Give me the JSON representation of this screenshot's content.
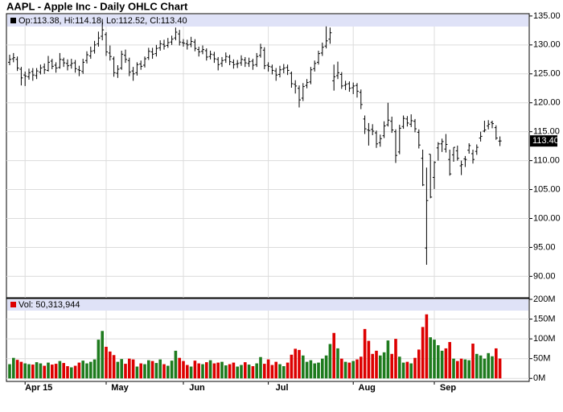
{
  "chart_data": [
    {
      "type": "ohlc",
      "title": "AAPL - Apple Inc - Daily OHLC Chart",
      "legend": "Op:113.38, Hi:114.18, Lo:112.52, Cl:113.40",
      "color": "#000000",
      "grid": true,
      "ylim": [
        86.3,
        135.4
      ],
      "yticks": [
        {
          "value": 90,
          "label": "90.00"
        },
        {
          "value": 95,
          "label": "95.00"
        },
        {
          "value": 100,
          "label": "100.00"
        },
        {
          "value": 105,
          "label": "105.00"
        },
        {
          "value": 110,
          "label": "110.00"
        },
        {
          "value": 115,
          "label": "115.00"
        },
        {
          "value": 120,
          "label": "120.00"
        },
        {
          "value": 125,
          "label": "125.00"
        },
        {
          "value": 130,
          "label": "130.00"
        },
        {
          "value": 135,
          "label": "135.00"
        }
      ],
      "last_close_label": "113.40",
      "open": [
        127.0,
        127.6,
        127.5,
        125.8,
        124.8,
        124.5,
        125.4,
        124.7,
        125.3,
        126.2,
        125.6,
        127.2,
        126.5,
        126.1,
        127.4,
        126.8,
        126.5,
        126.9,
        125.7,
        125.4,
        127.3,
        128.1,
        129.0,
        130.2,
        131.5,
        131.8,
        128.6,
        127.6,
        125.1,
        126.0,
        128.2,
        127.3,
        125.5,
        125.2,
        126.7,
        126.5,
        127.8,
        128.8,
        128.5,
        129.5,
        130.1,
        129.9,
        130.5,
        131.2,
        131.9,
        130.4,
        130.2,
        130.1,
        130.5,
        129.2,
        128.9,
        129.0,
        128.0,
        128.3,
        127.5,
        126.8,
        127.4,
        127.9,
        127.0,
        126.7,
        126.9,
        127.4,
        126.8,
        127.2,
        126.6,
        128.2,
        129.1,
        126.5,
        126.2,
        125.5,
        124.9,
        125.8,
        126.1,
        125.1,
        123.2,
        122.5,
        120.8,
        123.0,
        123.6,
        125.9,
        127.0,
        128.6,
        129.8,
        131.0,
        123.8,
        124.7,
        124.9,
        123.0,
        123.3,
        122.6,
        123.0,
        121.8,
        117.2,
        115.3,
        115.4,
        114.8,
        113.1,
        114.3,
        116.2,
        116.8,
        115.0,
        111.5,
        115.9,
        117.2,
        116.3,
        116.8,
        114.9,
        110.4,
        94.9,
        111.1,
        107.1,
        112.2,
        112.9,
        112.0,
        110.2,
        111.0,
        111.7,
        109.1,
        110.3,
        111.8,
        111.2,
        111.6,
        113.9,
        115.1,
        116.0,
        116.6,
        115.7,
        113.38
      ],
      "high": [
        128.3,
        128.6,
        128.0,
        126.2,
        125.4,
        125.9,
        126.0,
        126.0,
        126.6,
        126.8,
        128.1,
        127.6,
        127.0,
        128.6,
        127.8,
        127.5,
        127.6,
        127.4,
        126.4,
        127.6,
        128.9,
        129.7,
        130.7,
        132.3,
        134.5,
        132.2,
        129.9,
        128.0,
        126.5,
        129.0,
        129.2,
        127.8,
        126.2,
        127.0,
        127.3,
        128.0,
        129.5,
        129.5,
        130.0,
        130.8,
        130.9,
        131.2,
        131.6,
        133.0,
        132.6,
        131.0,
        130.9,
        131.4,
        131.0,
        129.7,
        129.9,
        129.4,
        129.0,
        128.8,
        127.9,
        127.9,
        128.7,
        128.3,
        127.5,
        127.4,
        128.2,
        127.9,
        127.8,
        127.6,
        128.6,
        130.2,
        129.6,
        127.0,
        126.6,
        126.0,
        126.4,
        126.7,
        126.6,
        125.4,
        123.9,
        123.0,
        123.4,
        124.1,
        126.2,
        127.3,
        129.0,
        130.4,
        133.2,
        133.0,
        126.6,
        127.1,
        125.3,
        123.8,
        123.7,
        123.5,
        123.4,
        122.3,
        117.8,
        116.5,
        116.3,
        115.2,
        114.5,
        116.8,
        120.0,
        117.6,
        115.4,
        116.2,
        117.8,
        117.7,
        118.0,
        117.2,
        115.4,
        111.9,
        108.8,
        111.1,
        109.9,
        113.2,
        113.8,
        114.6,
        111.9,
        112.3,
        112.6,
        110.0,
        110.8,
        113.0,
        111.9,
        112.8,
        115.0,
        116.9,
        117.0,
        116.9,
        116.1,
        114.18
      ],
      "low": [
        126.5,
        127.0,
        125.5,
        123.0,
        122.9,
        124.0,
        123.8,
        124.1,
        124.9,
        125.0,
        125.4,
        125.8,
        125.2,
        125.9,
        126.2,
        125.6,
        125.9,
        125.2,
        124.6,
        125.0,
        126.8,
        127.6,
        128.5,
        129.7,
        130.8,
        128.1,
        127.3,
        124.5,
        124.3,
        125.7,
        126.9,
        124.6,
        123.8,
        124.7,
        125.7,
        126.1,
        127.4,
        127.6,
        128.0,
        129.0,
        129.2,
        129.5,
        130.0,
        130.8,
        129.9,
        129.7,
        129.2,
        129.6,
        128.9,
        128.0,
        128.4,
        127.3,
        127.5,
        126.9,
        125.6,
        126.2,
        126.9,
        126.5,
        125.9,
        126.0,
        126.4,
        126.2,
        126.2,
        125.7,
        126.2,
        127.8,
        125.8,
        125.4,
        124.9,
        123.8,
        124.4,
        125.1,
        124.8,
        122.6,
        121.6,
        119.2,
        120.3,
        122.5,
        123.2,
        125.4,
        126.6,
        128.1,
        129.4,
        130.2,
        122.1,
        124.1,
        122.4,
        122.2,
        121.9,
        121.5,
        120.9,
        118.9,
        114.6,
        112.6,
        114.4,
        112.2,
        112.4,
        113.9,
        115.9,
        114.8,
        109.6,
        111.1,
        115.5,
        115.9,
        115.8,
        114.9,
        112.1,
        105.6,
        92.0,
        103.5,
        105.1,
        110.0,
        111.5,
        111.4,
        107.4,
        109.8,
        110.0,
        107.5,
        108.9,
        111.2,
        109.5,
        111.0,
        113.3,
        114.9,
        115.4,
        115.6,
        113.6,
        112.52
      ],
      "close": [
        127.5,
        127.8,
        126.0,
        124.3,
        124.6,
        125.2,
        124.8,
        125.5,
        126.0,
        125.7,
        127.0,
        126.3,
        126.0,
        127.5,
        126.9,
        126.4,
        126.8,
        125.9,
        125.6,
        127.0,
        128.3,
        128.9,
        130.0,
        131.2,
        132.6,
        128.8,
        128.0,
        125.2,
        125.8,
        128.4,
        127.5,
        125.3,
        125.0,
        126.6,
        126.3,
        127.6,
        128.9,
        128.4,
        129.4,
        130.2,
        129.8,
        130.4,
        131.0,
        132.2,
        130.5,
        130.3,
        130.0,
        130.6,
        129.4,
        128.8,
        129.2,
        127.9,
        128.4,
        127.6,
        126.6,
        127.3,
        128.0,
        127.1,
        126.6,
        126.8,
        127.5,
        126.9,
        127.1,
        126.5,
        128.0,
        129.5,
        126.4,
        126.3,
        125.6,
        124.8,
        125.7,
        126.0,
        125.6,
        123.3,
        122.9,
        120.5,
        122.8,
        123.5,
        125.7,
        126.8,
        128.5,
        129.6,
        130.7,
        132.1,
        124.5,
        125.2,
        122.9,
        123.2,
        122.5,
        122.9,
        122.0,
        119.7,
        115.5,
        115.2,
        115.1,
        112.9,
        113.8,
        116.0,
        117.0,
        115.3,
        110.9,
        115.6,
        117.3,
        116.5,
        116.9,
        115.5,
        112.7,
        105.8,
        103.1,
        103.7,
        109.7,
        112.9,
        113.3,
        112.8,
        107.7,
        112.3,
        110.4,
        109.3,
        110.2,
        112.6,
        110.2,
        112.3,
        114.2,
        115.3,
        116.3,
        116.4,
        113.9,
        113.4
      ]
    },
    {
      "type": "bar",
      "legend": "Vol: 50,313,944",
      "up_color": "#1e7b1e",
      "down_color": "#dd0000",
      "grid": true,
      "ylim": [
        -7.6,
        202
      ],
      "yticks": [
        {
          "value": 0,
          "label": "0M"
        },
        {
          "value": 50,
          "label": "50M"
        },
        {
          "value": 100,
          "label": "100M"
        },
        {
          "value": 150,
          "label": "150M"
        },
        {
          "value": 200,
          "label": "200M"
        }
      ],
      "categories": [
        null,
        null,
        null,
        null,
        "Apr 15",
        null,
        null,
        null,
        null,
        null,
        null,
        null,
        null,
        null,
        null,
        null,
        null,
        null,
        null,
        null,
        null,
        null,
        null,
        null,
        null,
        "May",
        null,
        null,
        null,
        null,
        null,
        null,
        null,
        null,
        null,
        null,
        null,
        null,
        null,
        null,
        null,
        null,
        null,
        null,
        null,
        "Jun",
        null,
        null,
        null,
        null,
        null,
        null,
        null,
        null,
        null,
        null,
        null,
        null,
        null,
        null,
        null,
        null,
        null,
        null,
        null,
        null,
        null,
        "Jul",
        null,
        null,
        null,
        null,
        null,
        null,
        null,
        null,
        null,
        null,
        null,
        null,
        null,
        null,
        null,
        null,
        null,
        null,
        null,
        null,
        null,
        "Aug",
        null,
        null,
        null,
        null,
        null,
        null,
        null,
        null,
        null,
        null,
        null,
        null,
        null,
        null,
        null,
        null,
        null,
        null,
        null,
        null,
        "Sep",
        null,
        null,
        null,
        null,
        null,
        null,
        null,
        null,
        null,
        null,
        null,
        null,
        null,
        null,
        null,
        null,
        null
      ],
      "values": [
        36,
        52,
        47,
        42,
        38,
        36,
        35,
        41,
        38,
        32,
        40,
        35,
        37,
        44,
        39,
        31,
        28,
        32,
        40,
        45,
        38,
        42,
        48,
        98,
        120,
        80,
        68,
        59,
        42,
        49,
        37,
        50,
        48,
        30,
        38,
        36,
        46,
        44,
        39,
        48,
        36,
        32,
        45,
        70,
        52,
        44,
        34,
        30,
        45,
        38,
        36,
        41,
        46,
        38,
        40,
        42,
        33,
        36,
        40,
        30,
        34,
        41,
        35,
        31,
        38,
        54,
        37,
        48,
        34,
        42,
        36,
        31,
        40,
        60,
        75,
        72,
        58,
        42,
        46,
        38,
        40,
        50,
        58,
        87,
        115,
        76,
        50,
        42,
        40,
        44,
        48,
        55,
        125,
        95,
        62,
        70,
        58,
        66,
        96,
        62,
        100,
        55,
        40,
        42,
        38,
        52,
        73,
        130,
        162,
        104,
        98,
        84,
        70,
        76,
        92,
        50,
        44,
        50,
        48,
        46,
        88,
        62,
        58,
        50,
        64,
        56,
        76,
        50.313944
      ]
    }
  ]
}
